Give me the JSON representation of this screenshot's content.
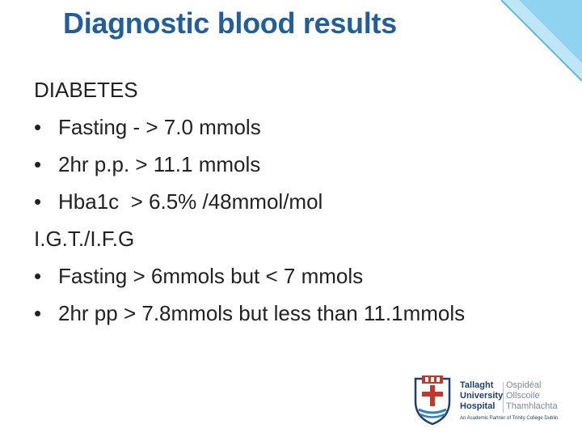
{
  "slide": {
    "title": "Diagnostic blood results",
    "lines": [
      {
        "type": "heading",
        "text": "DIABETES"
      },
      {
        "type": "bullet",
        "bullet": "•",
        "text": "Fasting - > 7.0 mmols"
      },
      {
        "type": "bullet",
        "bullet": "•",
        "text": "2hr p.p. > 11.1 mmols"
      },
      {
        "type": "bullet",
        "bullet": "•",
        "text": "Hba1c  > 6.5% /48mmol/mol"
      },
      {
        "type": "heading",
        "text": "I.G.T./I.F.G"
      },
      {
        "type": "bullet",
        "bullet": "•",
        "text": "Fasting > 6mmols but < 7 mmols"
      },
      {
        "type": "bullet",
        "bullet": "•",
        "text": "2hr pp > 7.8mmols but less than 11.1mmols"
      }
    ]
  },
  "logo": {
    "name_line1": "Tallaght",
    "name_line2": "University",
    "name_line3": "Hospital",
    "irish_line1": "Ospidéal",
    "irish_line2": "Ollscoile",
    "irish_line3": "Thamhlachta",
    "tagline": "An Academic Partner of Trinity College Dublin"
  },
  "colors": {
    "title": "#1f5f9f",
    "text": "#222222",
    "corner_accent": "#6fc3ea"
  }
}
